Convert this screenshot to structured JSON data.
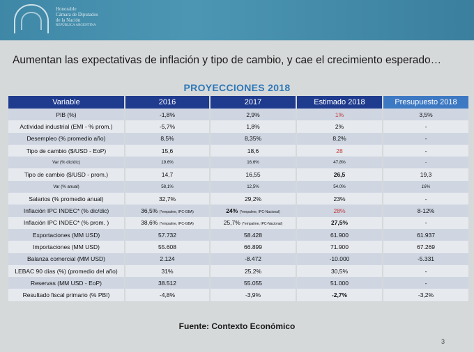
{
  "institution": {
    "lines": [
      "Honorable",
      "Cámara de Diputados",
      "de la Nación",
      "REPÚBLICA ARGENTINA"
    ]
  },
  "headline": "Aumentan las expectativas de inflación y tipo de cambio, y cae el crecimiento esperado…",
  "table_title": "PROYECCIONES 2018",
  "headers": [
    "Variable",
    "2016",
    "2017",
    "Estimado 2018",
    "Presupuesto 2018"
  ],
  "rows": [
    {
      "variable": "PIB (%)",
      "y2016": "-1,8%",
      "y2017": "2,9%",
      "est2018": "1%",
      "pres2018": "3,5%"
    },
    {
      "variable": "Actividad industrial (EMI - % prom.)",
      "y2016": "-5,7%",
      "y2017": "1,8%",
      "est2018": "2%",
      "pres2018": "-"
    },
    {
      "variable": "Desempleo (% promedio año)",
      "y2016": "8,5%",
      "y2017": "8,35%",
      "est2018": "8,2%",
      "pres2018": "-"
    },
    {
      "variable": "Tipo de cambio ($/USD  -  EoP)",
      "y2016": "15,6",
      "y2017": "18,6",
      "est2018": "28",
      "pres2018": "-"
    },
    {
      "variable": "Var (% dic/dic)",
      "y2016": "19.6%",
      "y2017": "16.6%",
      "est2018": "47.8%",
      "pres2018": "-"
    },
    {
      "variable": "Tipo de cambio ($/USD - prom.)",
      "y2016": "14,7",
      "y2017": "16,55",
      "est2018": "26,5",
      "pres2018": "19,3"
    },
    {
      "variable": "Var (% anual)",
      "y2016": "58,1%",
      "y2017": "12,5%",
      "est2018": "54.0%",
      "pres2018": "16%"
    },
    {
      "variable": "Salarios (% promedio anual)",
      "y2016": "32,7%",
      "y2017": "29,2%",
      "est2018": "23%",
      "pres2018": "-"
    },
    {
      "variable": "Inflación IPC INDEC* (% dic/dic)",
      "y2016": "36,5%",
      "y2016_note": "(*empalme, IPC-GBA)",
      "y2017": "24%",
      "y2017_note": "(*empalme, IPC-Nacional)",
      "est2018": "28%",
      "pres2018": "8-12%"
    },
    {
      "variable": "Inflación IPC INDEC* (% prom. )",
      "y2016": "38,6%",
      "y2016_note": "(*empalme, IPC-GBA)",
      "y2017": "25,7%",
      "y2017_note": "(*empalme, IPC-Nacional)",
      "est2018": "27,5%",
      "pres2018": "-"
    },
    {
      "variable": "Exportaciones (MM USD)",
      "y2016": "57.732",
      "y2017": "58.428",
      "est2018": "61.900",
      "pres2018": "61.937"
    },
    {
      "variable": "Importaciones (MM USD)",
      "y2016": "55.608",
      "y2017": "66.899",
      "est2018": "71.900",
      "pres2018": "67.269"
    },
    {
      "variable": "Balanza comercial (MM USD)",
      "y2016": "2.124",
      "y2017": "-8.472",
      "est2018": "-10.000",
      "pres2018": "-5.331"
    },
    {
      "variable": "LEBAC 90 días (%) (promedio del año)",
      "y2016": "31%",
      "y2017": "25,2%",
      "est2018": "30,5%",
      "pres2018": "-"
    },
    {
      "variable": "Reservas (MM USD - EoP)",
      "y2016": "38.512",
      "y2017": "55.055",
      "est2018": "51.000",
      "pres2018": "-"
    },
    {
      "variable": "Resultado fiscal primario (% PBI)",
      "y2016": "-4,8%",
      "y2017": "-3,9%",
      "est2018": "-2,7%",
      "pres2018": "-3,2%"
    }
  ],
  "source": "Fuente: Contexto Económico",
  "page_number": "3",
  "colors": {
    "header_bg": "#1f3b8e",
    "presupuesto_header_bg": "#3d78c3",
    "title_blue": "#2e78b7",
    "highlight_red": "#c0393b"
  }
}
